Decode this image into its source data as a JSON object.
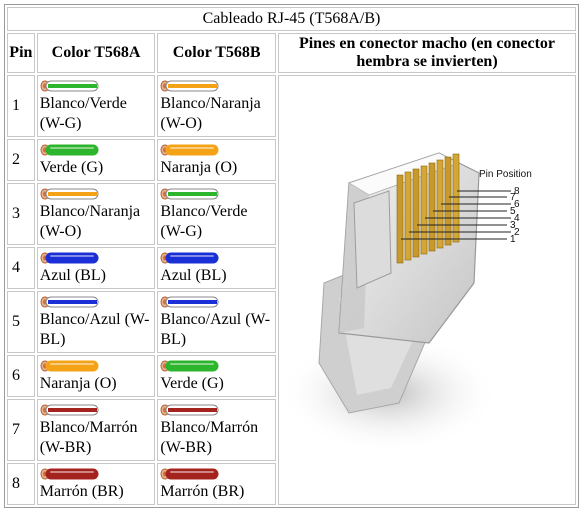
{
  "table": {
    "caption": "Cableado RJ-45 (T568A/B)",
    "headers": {
      "pin": "Pin",
      "t568a": "Color T568A",
      "t568b": "Color T568B",
      "image": "Pines en conector macho (en conector hembra se invierten)"
    },
    "rows": [
      {
        "pin": "1",
        "a_label": "Blanco/Verde (W-G)",
        "a_color": "#2db52d",
        "a_striped": true,
        "b_label": "Blanco/Naranja (W-O)",
        "b_color": "#f4a316",
        "b_striped": true
      },
      {
        "pin": "2",
        "a_label": "Verde (G)",
        "a_color": "#2db52d",
        "a_striped": false,
        "b_label": "Naranja (O)",
        "b_color": "#f4a316",
        "b_striped": false
      },
      {
        "pin": "3",
        "a_label": "Blanco/Naranja (W-O)",
        "a_color": "#f4a316",
        "a_striped": true,
        "b_label": "Blanco/Verde (W-G)",
        "b_color": "#2db52d",
        "b_striped": true
      },
      {
        "pin": "4",
        "a_label": "Azul (BL)",
        "a_color": "#1a2fd6",
        "a_striped": false,
        "b_label": "Azul (BL)",
        "b_color": "#1a2fd6",
        "b_striped": false
      },
      {
        "pin": "5",
        "a_label": "Blanco/Azul (W-BL)",
        "a_color": "#1a2fd6",
        "a_striped": true,
        "b_label": "Blanco/Azul (W-BL)",
        "b_color": "#1a2fd6",
        "b_striped": true
      },
      {
        "pin": "6",
        "a_label": "Naranja (O)",
        "a_color": "#f4a316",
        "a_striped": false,
        "b_label": "Verde (G)",
        "b_color": "#2db52d",
        "b_striped": false
      },
      {
        "pin": "7",
        "a_label": "Blanco/Marrón (W-BR)",
        "a_color": "#a5231e",
        "a_striped": true,
        "b_label": "Blanco/Marrón (W-BR)",
        "b_color": "#a5231e",
        "b_striped": true
      },
      {
        "pin": "8",
        "a_label": "Marrón (BR)",
        "a_color": "#a5231e",
        "a_striped": false,
        "b_label": "Marrón (BR)",
        "b_color": "#a5231e",
        "b_striped": false
      }
    ]
  },
  "connector_image": {
    "title": "Pin Position",
    "pin_numbers": [
      "8",
      "7",
      "6",
      "5",
      "4",
      "3",
      "2",
      "1"
    ]
  }
}
